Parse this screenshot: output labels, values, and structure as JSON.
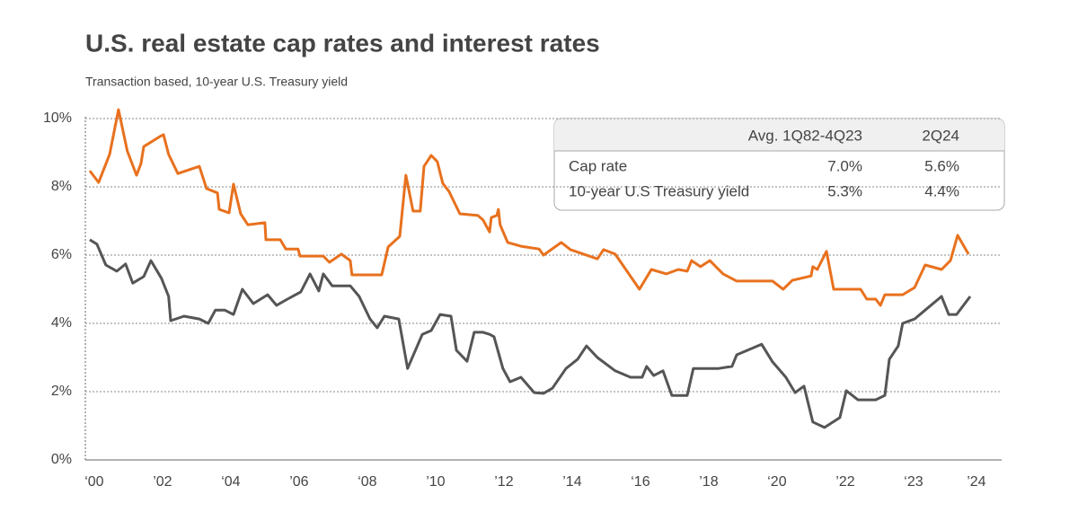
{
  "chart_data": {
    "type": "line",
    "title": "U.S. real estate cap rates and interest rates",
    "subtitle": "Transaction based, 10-year U.S. Treasury yield",
    "xlim": [
      1999.74,
      2026.58
    ],
    "xticks": [
      {
        "value": 2000,
        "label": "‘00"
      },
      {
        "value": 2002,
        "label": "’02"
      },
      {
        "value": 2004,
        "label": "‘04"
      },
      {
        "value": 2006,
        "label": "’06"
      },
      {
        "value": 2008,
        "label": "‘08"
      },
      {
        "value": 2010,
        "label": "’10"
      },
      {
        "value": 2012,
        "label": "’12"
      },
      {
        "value": 2014,
        "label": "’14"
      },
      {
        "value": 2016,
        "label": "‘16"
      },
      {
        "value": 2018,
        "label": "’18"
      },
      {
        "value": 2020,
        "label": "‘20"
      },
      {
        "value": 2022,
        "label": "’22"
      },
      {
        "value": 2024,
        "label": "‘23"
      },
      {
        "value": 2025.84,
        "label": "’24"
      }
    ],
    "ylim": [
      0,
      10
    ],
    "yticks": [
      {
        "value": 0,
        "label": "0%"
      },
      {
        "value": 2,
        "label": "2%"
      },
      {
        "value": 4,
        "label": "4%"
      },
      {
        "value": 6,
        "label": "6%"
      },
      {
        "value": 8,
        "label": "8%"
      },
      {
        "value": 10,
        "label": "10%"
      }
    ],
    "grid": true,
    "series": [
      {
        "name": "Cap rate",
        "color": "#e8711e",
        "x": [
          1999.87,
          2000.13,
          2000.45,
          2000.71,
          2000.97,
          2001.24,
          2001.37,
          2001.45,
          2001.92,
          2002.03,
          2002.18,
          2002.45,
          2003.08,
          2003.29,
          2003.61,
          2003.66,
          2003.95,
          2004.08,
          2004.29,
          2004.5,
          2005.0,
          2005.03,
          2005.45,
          2005.61,
          2005.97,
          2006.03,
          2006.71,
          2006.89,
          2007.24,
          2007.5,
          2007.55,
          2008.42,
          2008.61,
          2008.95,
          2009.13,
          2009.34,
          2009.55,
          2009.66,
          2009.87,
          2010.05,
          2010.21,
          2010.39,
          2010.71,
          2011.24,
          2011.39,
          2011.58,
          2011.63,
          2011.79,
          2011.84,
          2011.89,
          2012.11,
          2012.5,
          2013.03,
          2013.16,
          2013.68,
          2013.95,
          2014.74,
          2014.92,
          2015.26,
          2015.66,
          2015.97,
          2016.32,
          2016.76,
          2017.11,
          2017.37,
          2017.5,
          2017.76,
          2018.03,
          2018.42,
          2018.82,
          2019.87,
          2020.18,
          2020.45,
          2021.0,
          2021.05,
          2021.18,
          2021.45,
          2021.66,
          2022.45,
          2022.63,
          2022.89,
          2023.03,
          2023.16,
          2023.68,
          2024.03,
          2024.34,
          2024.82,
          2025.08,
          2025.29,
          2025.61
        ],
        "values": [
          8.47,
          8.13,
          8.95,
          10.26,
          9.05,
          8.34,
          8.68,
          9.18,
          9.47,
          9.53,
          8.95,
          8.39,
          8.6,
          7.95,
          7.82,
          7.34,
          7.24,
          8.08,
          7.21,
          6.89,
          6.95,
          6.45,
          6.45,
          6.18,
          6.18,
          5.97,
          5.97,
          5.79,
          6.03,
          5.84,
          5.42,
          5.42,
          6.24,
          6.55,
          8.34,
          7.29,
          7.29,
          8.6,
          8.92,
          8.74,
          8.1,
          7.87,
          7.21,
          7.16,
          7.03,
          6.68,
          7.1,
          7.16,
          7.34,
          6.89,
          6.37,
          6.26,
          6.18,
          6.0,
          6.37,
          6.16,
          5.89,
          6.16,
          6.03,
          5.45,
          5.0,
          5.58,
          5.45,
          5.58,
          5.53,
          5.84,
          5.66,
          5.84,
          5.45,
          5.24,
          5.24,
          5.0,
          5.26,
          5.39,
          5.66,
          5.58,
          6.11,
          5.0,
          5.0,
          4.71,
          4.71,
          4.53,
          4.84,
          4.84,
          5.05,
          5.71,
          5.58,
          5.84,
          6.58,
          6.03
        ]
      },
      {
        "name": "10-year U.S Treasury yield",
        "color": "#555555",
        "x": [
          1999.87,
          2000.08,
          2000.34,
          2000.66,
          2000.92,
          2001.13,
          2001.45,
          2001.66,
          2001.97,
          2002.18,
          2002.24,
          2002.63,
          2003.08,
          2003.34,
          2003.55,
          2003.82,
          2004.08,
          2004.34,
          2004.66,
          2005.08,
          2005.34,
          2005.66,
          2006.05,
          2006.32,
          2006.58,
          2006.71,
          2006.97,
          2007.5,
          2007.76,
          2008.08,
          2008.29,
          2008.5,
          2008.92,
          2009.18,
          2009.61,
          2009.87,
          2010.13,
          2010.45,
          2010.61,
          2010.92,
          2011.13,
          2011.39,
          2011.58,
          2011.71,
          2011.97,
          2012.18,
          2012.5,
          2012.89,
          2013.16,
          2013.42,
          2013.82,
          2014.16,
          2014.42,
          2014.74,
          2015.26,
          2015.71,
          2016.05,
          2016.18,
          2016.39,
          2016.66,
          2016.92,
          2017.37,
          2017.55,
          2018.29,
          2018.68,
          2018.82,
          2019.55,
          2019.87,
          2020.26,
          2020.53,
          2020.79,
          2021.05,
          2021.39,
          2021.84,
          2022.03,
          2022.37,
          2022.89,
          2023.16,
          2023.29,
          2023.55,
          2023.68,
          2024.03,
          2024.34,
          2024.82,
          2025.03,
          2025.26,
          2025.66
        ],
        "values": [
          6.45,
          6.32,
          5.71,
          5.53,
          5.74,
          5.18,
          5.37,
          5.84,
          5.32,
          4.79,
          4.08,
          4.21,
          4.13,
          4.0,
          4.39,
          4.39,
          4.26,
          5.0,
          4.58,
          4.84,
          4.53,
          4.71,
          4.92,
          5.45,
          4.95,
          5.45,
          5.1,
          5.1,
          4.79,
          4.13,
          3.87,
          4.21,
          4.13,
          2.68,
          3.68,
          3.79,
          4.26,
          4.21,
          3.21,
          2.89,
          3.74,
          3.74,
          3.68,
          3.61,
          2.68,
          2.29,
          2.42,
          1.97,
          1.95,
          2.1,
          2.68,
          2.95,
          3.34,
          3.0,
          2.61,
          2.42,
          2.42,
          2.74,
          2.47,
          2.61,
          1.89,
          1.89,
          2.68,
          2.68,
          2.74,
          3.08,
          3.39,
          2.87,
          2.42,
          1.97,
          2.16,
          1.11,
          0.95,
          1.24,
          2.03,
          1.76,
          1.76,
          1.89,
          2.95,
          3.34,
          4.0,
          4.13,
          4.39,
          4.79,
          4.26,
          4.26,
          4.79
        ]
      }
    ]
  },
  "table": {
    "columns": [
      "Avg. 1Q82-4Q23",
      "2Q24"
    ],
    "rows": [
      [
        "Cap rate",
        "7.0%",
        "5.6%"
      ],
      [
        "10-year U.S Treasury yield",
        "5.3%",
        "4.4%"
      ]
    ]
  }
}
